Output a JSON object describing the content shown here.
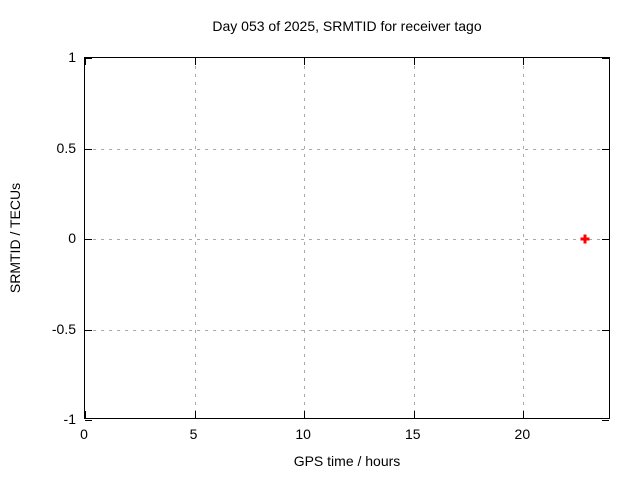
{
  "chart_data": {
    "type": "scatter",
    "title": "Day 053 of 2025, SRMTID for receiver tago",
    "xlabel": "GPS time / hours",
    "ylabel": "SRMTID / TECUs",
    "xlim": [
      0,
      24
    ],
    "ylim": [
      -1,
      1
    ],
    "xticks": [
      {
        "v": 0,
        "label": "0"
      },
      {
        "v": 5,
        "label": "5"
      },
      {
        "v": 10,
        "label": "10"
      },
      {
        "v": 15,
        "label": "15"
      },
      {
        "v": 20,
        "label": "20"
      }
    ],
    "yticks": [
      {
        "v": -1,
        "label": "-1"
      },
      {
        "v": -0.5,
        "label": "-0.5"
      },
      {
        "v": 0,
        "label": "0"
      },
      {
        "v": 0.5,
        "label": "0.5"
      },
      {
        "v": 1,
        "label": "1"
      }
    ],
    "grid": "dashed",
    "legend_position": "none",
    "series": [
      {
        "name": "SRMTID",
        "marker": "plus",
        "color": "#ff0000",
        "points": [
          {
            "x": 22.8,
            "y": 0
          }
        ]
      }
    ]
  },
  "colors": {
    "background": "#ffffff",
    "axis": "#000000",
    "grid": "#a8a8a8",
    "marker": "#ff0000"
  }
}
